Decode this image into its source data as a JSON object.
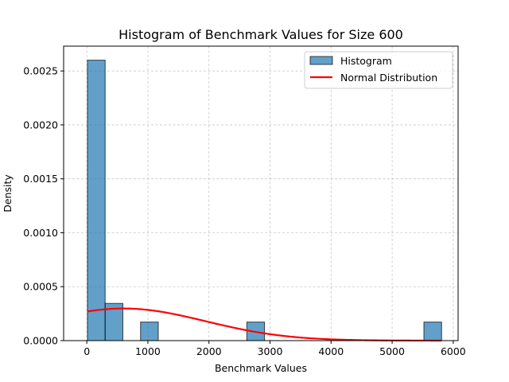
{
  "chart_data": {
    "type": "bar",
    "title": "Histogram of Benchmark Values for Size 600",
    "xlabel": "Benchmark Values",
    "ylabel": "Density",
    "xlim": [
      -380,
      6080
    ],
    "ylim": [
      0,
      0.00273
    ],
    "x_ticks": [
      0,
      1000,
      2000,
      3000,
      4000,
      5000,
      6000
    ],
    "y_ticks": [
      0.0,
      0.0005,
      0.001,
      0.0015,
      0.002,
      0.0025
    ],
    "x_tick_labels": [
      "0",
      "1000",
      "2000",
      "3000",
      "4000",
      "5000",
      "6000"
    ],
    "y_tick_labels": [
      "0.0000",
      "0.0005",
      "0.0010",
      "0.0015",
      "0.0020",
      "0.0025"
    ],
    "grid": true,
    "legend_position": "top-right",
    "series": [
      {
        "name": "Histogram",
        "type": "histogram",
        "color": "#1f77b4",
        "bins": [
          {
            "x0": 10,
            "x1": 300,
            "density": 0.0026
          },
          {
            "x0": 300,
            "x1": 590,
            "density": 0.000345
          },
          {
            "x0": 880,
            "x1": 1170,
            "density": 0.000172
          },
          {
            "x0": 2620,
            "x1": 2910,
            "density": 0.000172
          },
          {
            "x0": 5520,
            "x1": 5810,
            "density": 0.000172
          }
        ]
      },
      {
        "name": "Normal Distribution",
        "type": "line",
        "color": "#ff0000",
        "mean": 600,
        "std": 1340,
        "x_range": [
          10,
          5810
        ]
      }
    ]
  }
}
